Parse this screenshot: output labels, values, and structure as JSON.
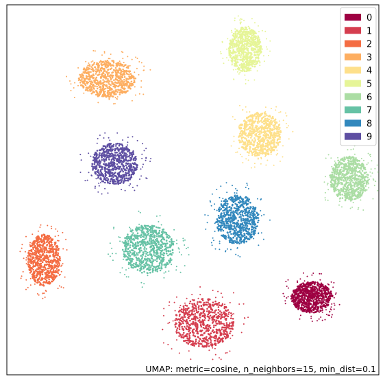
{
  "chart_data": {
    "type": "scatter",
    "title": "",
    "xlabel": "",
    "ylabel": "",
    "grid": false,
    "axes_ticks": false,
    "legend_placement": "top-right",
    "annotation": "UMAP: metric=cosine, n_neighbors=15, min_dist=0.1",
    "x_range": [
      0,
      100
    ],
    "y_range": [
      0,
      100
    ],
    "series": [
      {
        "name": "0",
        "color": "#9e0142",
        "clusters": [
          {
            "cx": 82,
            "cy": 21,
            "rx": 5.6,
            "ry": 4.2
          }
        ]
      },
      {
        "name": "1",
        "color": "#d53e4f",
        "clusters": [
          {
            "cx": 53,
            "cy": 14,
            "rx": 8.0,
            "ry": 6.6
          }
        ]
      },
      {
        "name": "2",
        "color": "#f46d43",
        "clusters": [
          {
            "cx": 10,
            "cy": 31,
            "rx": 4.4,
            "ry": 7.0
          }
        ]
      },
      {
        "name": "3",
        "color": "#fdae61",
        "clusters": [
          {
            "cx": 27,
            "cy": 80,
            "rx": 7.6,
            "ry": 5.0
          }
        ]
      },
      {
        "name": "4",
        "color": "#fee08b",
        "clusters": [
          {
            "cx": 68,
            "cy": 65,
            "rx": 5.8,
            "ry": 6.0
          }
        ]
      },
      {
        "name": "5",
        "color": "#e6f598",
        "clusters": [
          {
            "cx": 64,
            "cy": 88,
            "rx": 4.4,
            "ry": 6.0
          }
        ]
      },
      {
        "name": "6",
        "color": "#abdda4",
        "clusters": [
          {
            "cx": 92,
            "cy": 53,
            "rx": 5.2,
            "ry": 6.0
          }
        ]
      },
      {
        "name": "7",
        "color": "#66c2a5",
        "clusters": [
          {
            "cx": 38,
            "cy": 34,
            "rx": 7.0,
            "ry": 6.6
          }
        ]
      },
      {
        "name": "8",
        "color": "#3288bd",
        "clusters": [
          {
            "cx": 62,
            "cy": 42,
            "rx": 5.8,
            "ry": 6.6
          }
        ]
      },
      {
        "name": "9",
        "color": "#5e4fa2",
        "clusters": [
          {
            "cx": 29,
            "cy": 57,
            "rx": 6.2,
            "ry": 5.6
          }
        ]
      }
    ]
  }
}
